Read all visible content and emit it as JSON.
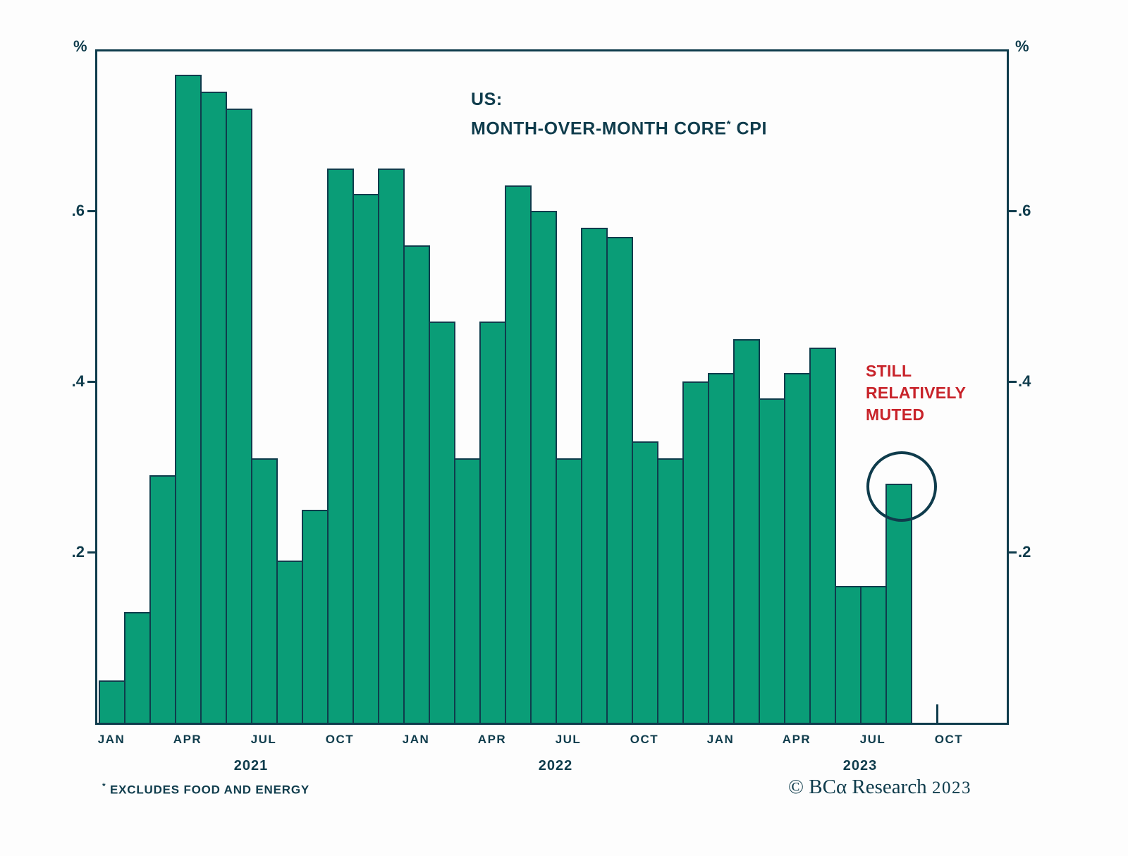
{
  "title": {
    "line1": "US:",
    "line2_pre": "MONTH-OVER-MONTH CORE",
    "line2_sup": "*",
    "line2_post": " CPI"
  },
  "annotation": {
    "lines": [
      "STILL",
      "RELATIVELY",
      "MUTED"
    ],
    "color": "#c8232a"
  },
  "footnote": {
    "sup": "*",
    "text": " EXCLUDES FOOD AND ENERGY"
  },
  "copyright": {
    "text": "© BCα Research",
    "year": "2023"
  },
  "chart_data": {
    "type": "bar",
    "title": "US: MONTH-OVER-MONTH CORE* CPI",
    "unit": "%",
    "ylim": [
      0,
      0.787
    ],
    "yticks": [
      0.2,
      0.4,
      0.6
    ],
    "ytick_labels": [
      ".2",
      ".4",
      ".6"
    ],
    "grid": false,
    "legend": "none",
    "x": [
      "Jan 2021",
      "Feb 2021",
      "Mar 2021",
      "Apr 2021",
      "May 2021",
      "Jun 2021",
      "Jul 2021",
      "Aug 2021",
      "Sep 2021",
      "Oct 2021",
      "Nov 2021",
      "Dec 2021",
      "Jan 2022",
      "Feb 2022",
      "Mar 2022",
      "Apr 2022",
      "May 2022",
      "Jun 2022",
      "Jul 2022",
      "Aug 2022",
      "Sep 2022",
      "Oct 2022",
      "Nov 2022",
      "Dec 2022",
      "Jan 2023",
      "Feb 2023",
      "Mar 2023",
      "Apr 2023",
      "May 2023",
      "Jun 2023",
      "Jul 2023",
      "Aug 2023"
    ],
    "values": [
      0.05,
      0.13,
      0.29,
      0.76,
      0.74,
      0.72,
      0.31,
      0.19,
      0.25,
      0.65,
      0.62,
      0.65,
      0.56,
      0.47,
      0.31,
      0.47,
      0.63,
      0.6,
      0.31,
      0.58,
      0.57,
      0.33,
      0.31,
      0.4,
      0.41,
      0.45,
      0.38,
      0.41,
      0.44,
      0.16,
      0.16,
      0.28
    ],
    "xtick_labels": [
      "JAN",
      "APR",
      "JUL",
      "OCT",
      "JAN",
      "APR",
      "JUL",
      "OCT",
      "JAN",
      "APR",
      "JUL",
      "OCT"
    ],
    "xtick_month_indices": [
      0,
      3,
      6,
      9,
      12,
      15,
      18,
      21,
      24,
      27,
      30,
      33
    ],
    "year_labels": [
      "2021",
      "2022",
      "2023"
    ],
    "circled_index": 31,
    "colors": {
      "bar_fill": "#0a9d77",
      "outline": "#0f3c4c",
      "annotation_red": "#c8232a"
    }
  }
}
